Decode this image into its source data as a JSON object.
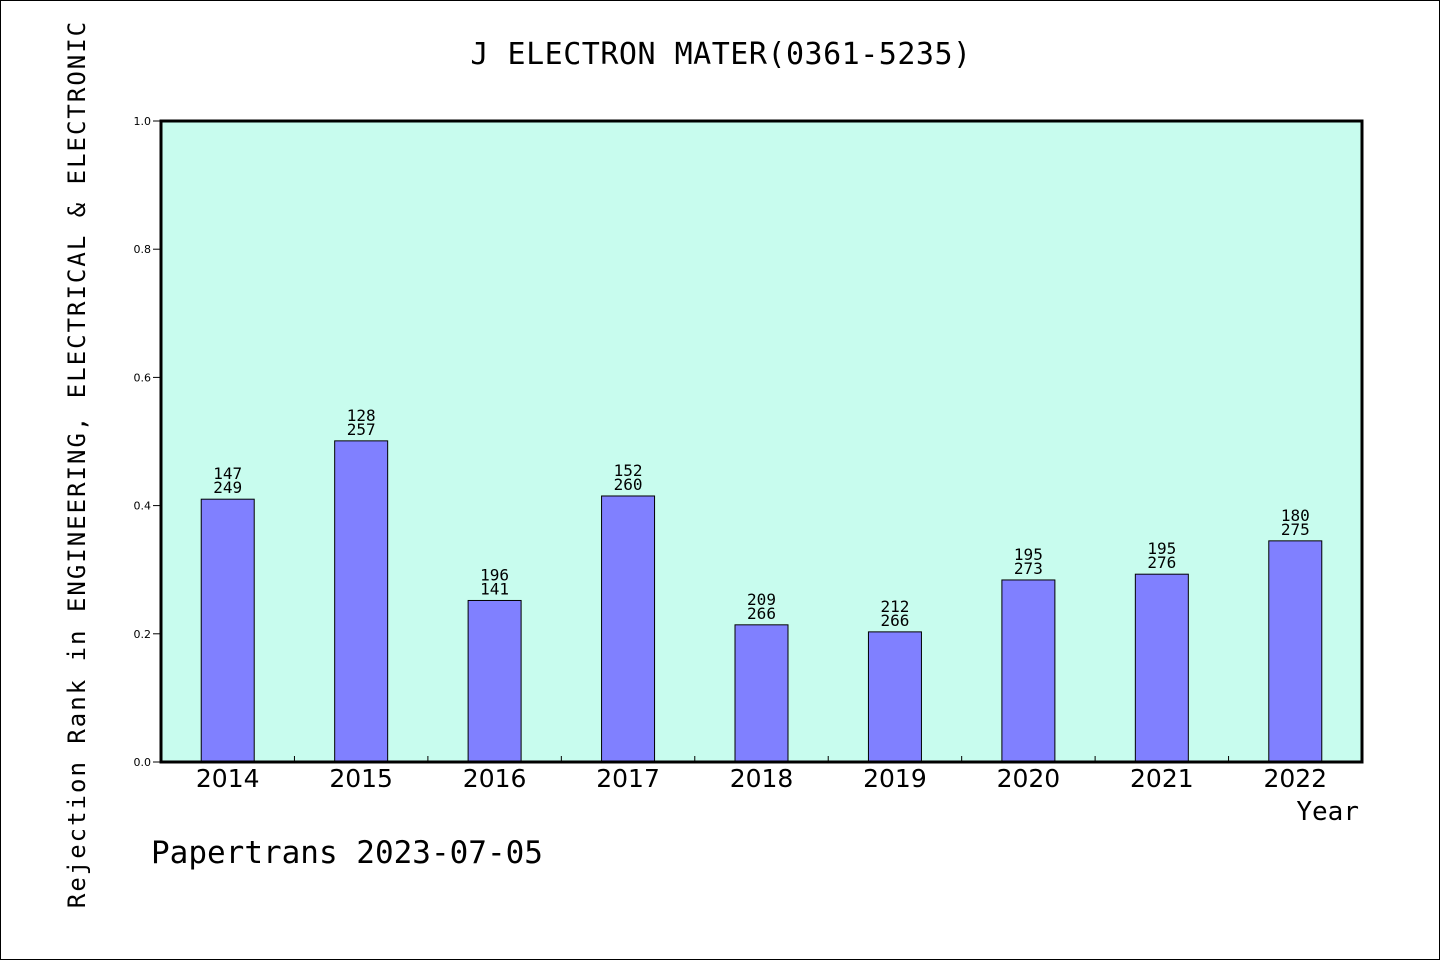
{
  "chart_data": {
    "type": "bar",
    "title": "J ELECTRON MATER(0361-5235)",
    "xlabel": "Year",
    "ylabel": "Rejection Rank in ENGINEERING, ELECTRICAL & ELECTRONIC",
    "ylim": [
      0,
      1.0
    ],
    "yticks": [
      "0.0",
      "0.2",
      "0.4",
      "0.6",
      "0.8",
      "1.0"
    ],
    "grid": false,
    "categories": [
      "2014",
      "2015",
      "2016",
      "2017",
      "2018",
      "2019",
      "2020",
      "2021",
      "2022"
    ],
    "values": [
      0.41,
      0.501,
      0.252,
      0.415,
      0.214,
      0.203,
      0.284,
      0.293,
      0.345
    ],
    "labels_top": [
      "147",
      "128",
      "196",
      "152",
      "209",
      "212",
      "195",
      "195",
      "180"
    ],
    "labels_bottom": [
      "249",
      "257",
      "141",
      "260",
      "266",
      "266",
      "273",
      "276",
      "275"
    ],
    "colors": {
      "plot_background": "#c8fcee",
      "bar_fill": "#8080ff",
      "bar_stroke": "#000000"
    }
  },
  "footer": {
    "note": "Papertrans 2023-07-05"
  }
}
